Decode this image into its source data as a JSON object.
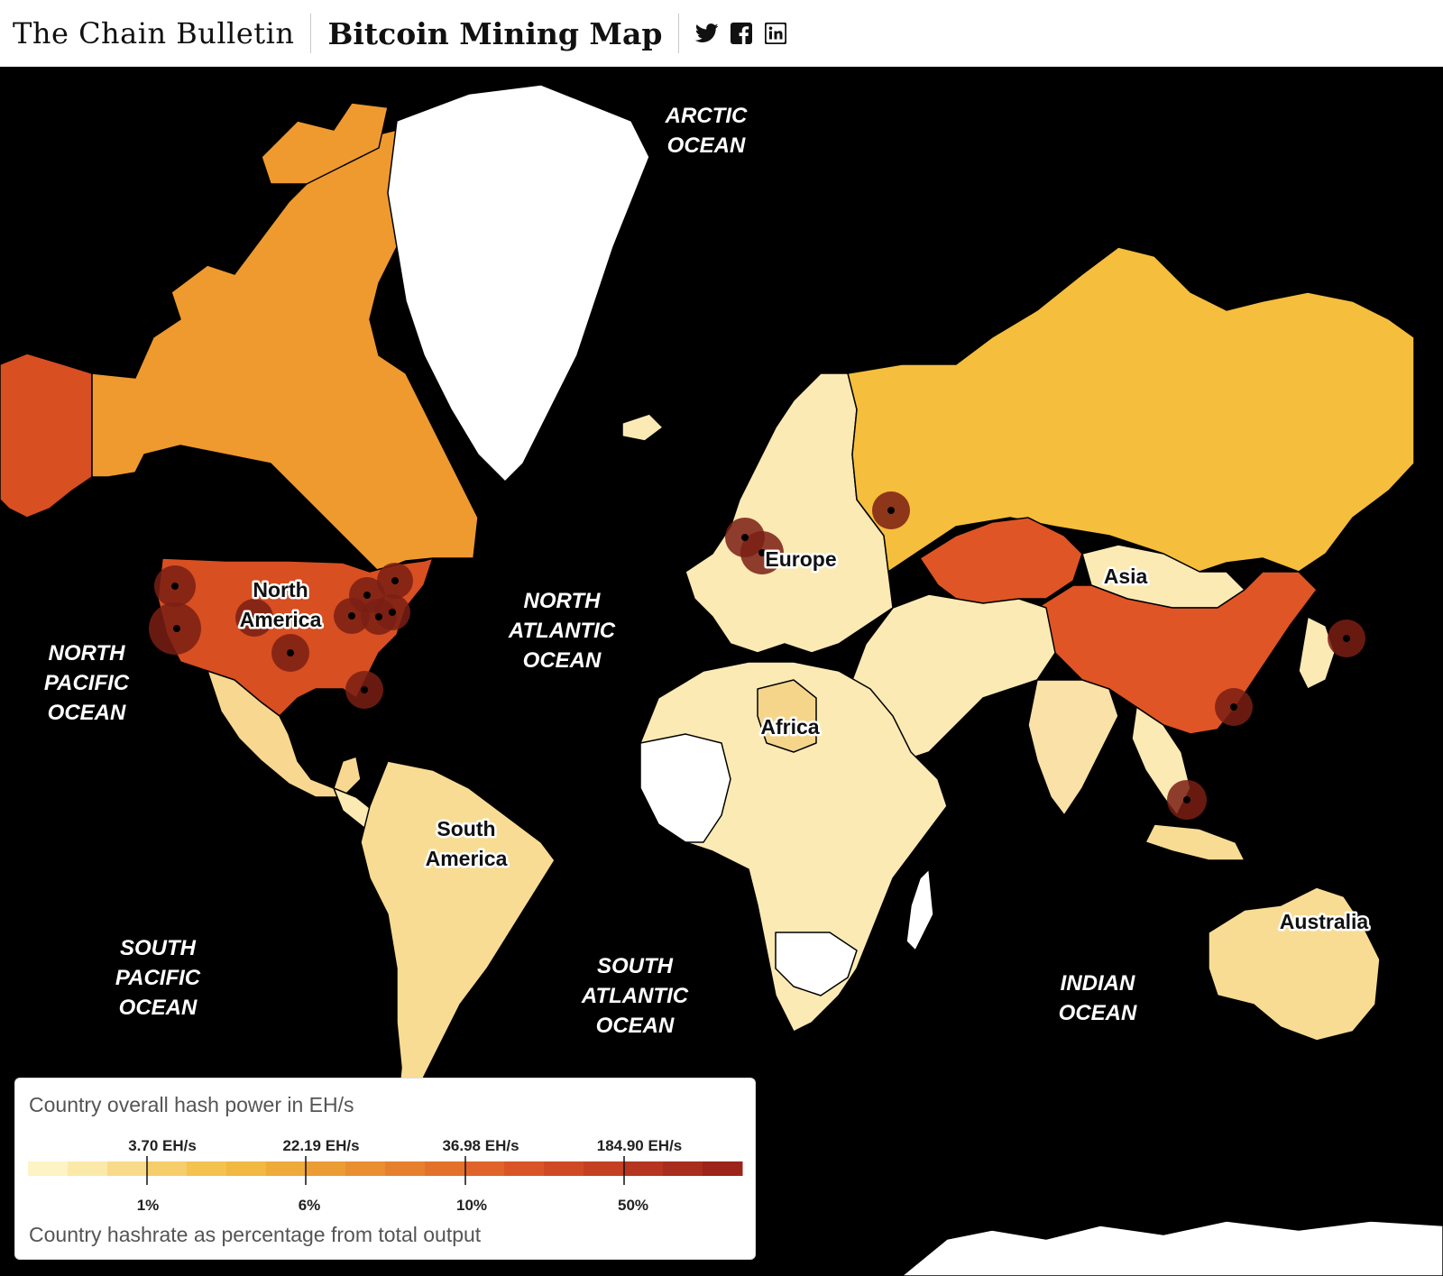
{
  "header": {
    "brand": "The Chain Bulletin",
    "title": "Bitcoin Mining Map",
    "social": [
      {
        "name": "twitter-icon",
        "label": "Twitter"
      },
      {
        "name": "facebook-icon",
        "label": "Facebook"
      },
      {
        "name": "linkedin-icon",
        "label": "LinkedIn"
      }
    ]
  },
  "map": {
    "oceans": [
      {
        "id": "arctic",
        "lines": [
          "ARCTIC",
          "OCEAN"
        ]
      },
      {
        "id": "north-atlantic",
        "lines": [
          "NORTH",
          "ATLANTIC",
          "OCEAN"
        ]
      },
      {
        "id": "north-pacific",
        "lines": [
          "NORTH",
          "PACIFIC",
          "OCEAN"
        ]
      },
      {
        "id": "south-pacific",
        "lines": [
          "SOUTH",
          "PACIFIC",
          "OCEAN"
        ]
      },
      {
        "id": "south-atlantic",
        "lines": [
          "SOUTH",
          "ATLANTIC",
          "OCEAN"
        ]
      },
      {
        "id": "indian",
        "lines": [
          "INDIAN",
          "OCEAN"
        ]
      }
    ],
    "continents": [
      {
        "id": "north-america",
        "lines": [
          "North",
          "America"
        ]
      },
      {
        "id": "europe",
        "lines": [
          "Europe"
        ]
      },
      {
        "id": "asia",
        "lines": [
          "Asia"
        ]
      },
      {
        "id": "africa",
        "lines": [
          "Africa"
        ]
      },
      {
        "id": "south-america",
        "lines": [
          "South",
          "America"
        ]
      },
      {
        "id": "australia",
        "lines": [
          "Australia"
        ]
      }
    ],
    "colors": {
      "water": "#000000",
      "greenland": "#ffffff",
      "canada": "#ef9a2e",
      "usa": "#d84f22",
      "alaska": "#d84f22",
      "russia": "#f5be3c",
      "china": "#e05525",
      "kazakhstan": "#e05525",
      "low": "#fbeab4",
      "none": "#ffffff",
      "marker": "#7a1f14"
    }
  },
  "legend": {
    "title": "Country overall hash power in EH/s",
    "subtitle": "Country hashrate as percentage from total output",
    "top_ticks": [
      "3.70 EH/s",
      "22.19 EH/s",
      "36.98 EH/s",
      "184.90 EH/s"
    ],
    "bottom_ticks": [
      "1%",
      "6%",
      "10%",
      "50%"
    ],
    "scale_colors": [
      "#fdf3c4",
      "#fbe9aa",
      "#f8db8a",
      "#f5cd6a",
      "#f3c24f",
      "#f1b842",
      "#eeaa3a",
      "#ec9c34",
      "#e98e31",
      "#e6802e",
      "#e3712c",
      "#e0632a",
      "#d95527",
      "#cf4a24",
      "#c34022",
      "#b53520",
      "#a82d1d",
      "#9c241b"
    ]
  }
}
